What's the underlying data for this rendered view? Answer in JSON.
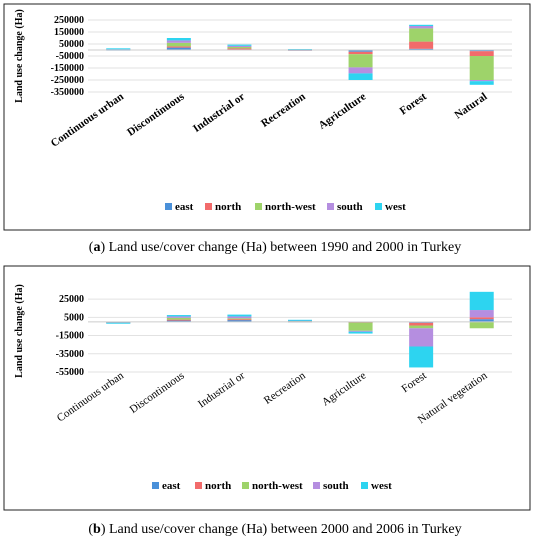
{
  "colors": {
    "east": "#4a90d9",
    "north": "#f26b6b",
    "north-west": "#9ed36a",
    "south": "#b58ee0",
    "west": "#2dd4f0"
  },
  "chart_data": [
    {
      "type": "bar",
      "stacked": true,
      "title": "",
      "ylabel": "Land use change (Ha)",
      "ylim": [
        -350000,
        250000
      ],
      "yticks": [
        "250000",
        "150000",
        "50000",
        "-50000",
        "-150000",
        "-250000",
        "-350000"
      ],
      "ytick_values": [
        250000,
        150000,
        50000,
        -50000,
        -150000,
        -250000,
        -350000
      ],
      "categories": [
        "Continuous urban",
        "Discontinuous",
        "Industrial or",
        "Recreation",
        "Agriculture",
        "Forest",
        "Natural"
      ],
      "legend_position": "bottom",
      "series": [
        {
          "name": "east",
          "values": [
            3000,
            20000,
            8000,
            2000,
            -15000,
            10000,
            -10000
          ]
        },
        {
          "name": "north",
          "values": [
            2000,
            10000,
            5000,
            1000,
            -20000,
            60000,
            -40000
          ]
        },
        {
          "name": "north-west",
          "values": [
            4000,
            30000,
            12000,
            2000,
            -110000,
            110000,
            -200000
          ]
        },
        {
          "name": "south",
          "values": [
            3000,
            20000,
            10000,
            2000,
            -50000,
            20000,
            -10000
          ]
        },
        {
          "name": "west",
          "values": [
            2000,
            20000,
            10000,
            1000,
            -55000,
            10000,
            -30000
          ]
        }
      ],
      "caption_label": "a",
      "caption_text": " Land use/cover change (Ha) between 1990 and 2000 in Turkey"
    },
    {
      "type": "bar",
      "stacked": true,
      "title": "",
      "ylabel": "Land use change (Ha)",
      "ylim": [
        -55000,
        35000
      ],
      "yticks": [
        "25000",
        "5000",
        "-15000",
        "-35000",
        "-55000"
      ],
      "ytick_values": [
        25000,
        5000,
        -15000,
        -35000,
        -55000
      ],
      "categories": [
        "Continuous urban",
        "Discontinuous",
        "Industrial or",
        "Recreation",
        "Agriculture",
        "Forest",
        "Natural vegetation"
      ],
      "legend_position": "bottom",
      "series": [
        {
          "name": "east",
          "values": [
            -200,
            1500,
            2000,
            500,
            -300,
            -1000,
            3000
          ]
        },
        {
          "name": "north",
          "values": [
            -200,
            1000,
            1000,
            300,
            -500,
            -3000,
            2000
          ]
        },
        {
          "name": "north-west",
          "values": [
            -300,
            2000,
            1000,
            500,
            -9000,
            -3000,
            -7000
          ]
        },
        {
          "name": "south",
          "values": [
            -200,
            1500,
            2000,
            500,
            -1000,
            -20000,
            8000
          ]
        },
        {
          "name": "west",
          "values": [
            -300,
            1500,
            2000,
            500,
            -2000,
            -23000,
            20000
          ]
        }
      ],
      "caption_label": "b",
      "caption_text": " Land use/cover change (Ha) between 2000 and 2006 in Turkey"
    }
  ]
}
